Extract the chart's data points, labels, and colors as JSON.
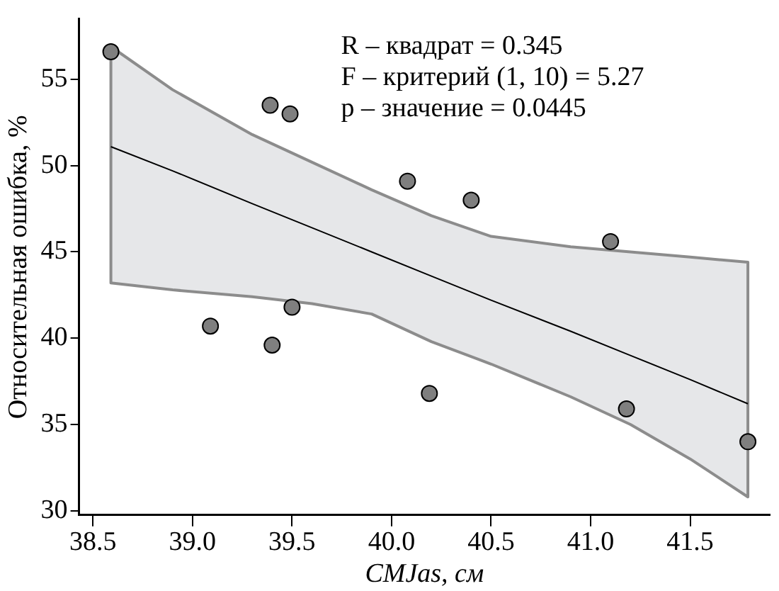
{
  "chart_data": {
    "type": "scatter",
    "xlabel": "CMJas, см",
    "ylabel": "Относительная ошибка, %",
    "xlim": [
      38.43,
      41.9
    ],
    "ylim": [
      29.75,
      58.5
    ],
    "xticks": [
      38.5,
      {
        "value": 39,
        "label": "39.0"
      },
      39.5,
      {
        "value": 40,
        "label": "40.0"
      },
      40.5,
      {
        "value": 41,
        "label": "41.0"
      },
      41.5
    ],
    "yticks": [
      30,
      35,
      40,
      45,
      50,
      55
    ],
    "grid": false,
    "legend": false,
    "marker": "circle",
    "annotations": [
      "R – квадрат = 0.345",
      "F – критерий (1, 10) = 5.27",
      "p – значение = 0.0445"
    ],
    "series": [
      {
        "color": "#7f7f7f",
        "x": [
          38.59,
          39.39,
          39.49,
          39.09,
          39.4,
          39.5,
          40.08,
          40.4,
          41.1,
          40.19,
          41.18,
          41.79
        ],
        "values": [
          56.6,
          53.5,
          53.0,
          40.7,
          39.6,
          41.8,
          49.1,
          48.0,
          45.6,
          36.8,
          35.9,
          34.0
        ]
      },
      {
        "type": "line",
        "marker": "none",
        "color": "#000000",
        "x": [
          38.59,
          38.9,
          39.3,
          39.6,
          39.9,
          40.2,
          40.5,
          40.9,
          41.2,
          41.5,
          41.79
        ],
        "values": [
          51.1,
          49.7,
          47.8,
          46.4,
          45.0,
          43.6,
          42.2,
          40.4,
          39.0,
          37.6,
          36.2
        ],
        "upper": [
          56.9,
          54.4,
          51.8,
          50.2,
          48.6,
          47.1,
          45.9,
          45.3,
          45.0,
          44.7,
          44.4
        ],
        "lower": [
          43.2,
          42.8,
          42.4,
          42.0,
          41.4,
          39.8,
          38.5,
          36.6,
          35.0,
          33.0,
          30.8
        ]
      }
    ]
  }
}
